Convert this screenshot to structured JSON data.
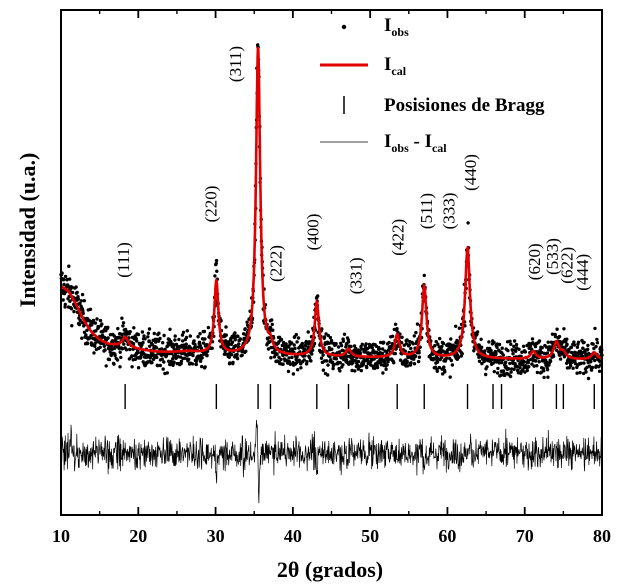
{
  "chart_data": {
    "type": "scatter",
    "title": "",
    "xlabel": "2θ (grados)",
    "ylabel": "Intensidad (u.a.)",
    "xlim": [
      10,
      80
    ],
    "ylim": [
      0,
      1000
    ],
    "xticks": [
      10,
      20,
      30,
      40,
      50,
      60,
      70,
      80
    ],
    "yticks_visible": false,
    "legend": {
      "placement": "top-right",
      "entries": [
        {
          "marker": "dot",
          "label": "I",
          "sub": "obs",
          "color": "#000000"
        },
        {
          "marker": "line",
          "label": "I",
          "sub": "cal",
          "color": "#e00000"
        },
        {
          "marker": "bar",
          "label": "Posisiones de Bragg",
          "color": "#000000"
        },
        {
          "marker": "thin-line",
          "label": "I",
          "sub": "obs",
          "label2": " - I",
          "sub2": "cal",
          "color": "#000000"
        }
      ]
    },
    "series": [
      {
        "name": "Iobs",
        "style": "points",
        "color": "#000000"
      },
      {
        "name": "Ical",
        "style": "line",
        "color": "#e00000"
      },
      {
        "name": "Posisiones de Bragg",
        "style": "ticks",
        "color": "#000000"
      },
      {
        "name": "Iobs - Ical",
        "style": "thin-line",
        "color": "#000000"
      }
    ],
    "background": [
      [
        10,
        245
      ],
      [
        11,
        230
      ],
      [
        12,
        190
      ],
      [
        13,
        145
      ],
      [
        14,
        112
      ],
      [
        15,
        92
      ],
      [
        16,
        80
      ],
      [
        18,
        70
      ],
      [
        22,
        58
      ],
      [
        26,
        52
      ],
      [
        30,
        48
      ],
      [
        40,
        44
      ],
      [
        50,
        41
      ],
      [
        60,
        38
      ],
      [
        70,
        36
      ],
      [
        80,
        35
      ]
    ],
    "peaks": [
      {
        "hkl": "(111)",
        "two_theta": 18.3,
        "intensity": 30,
        "width": 0.5
      },
      {
        "hkl": "(220)",
        "two_theta": 30.1,
        "intensity": 210,
        "width": 0.32
      },
      {
        "hkl": "(311)",
        "two_theta": 35.5,
        "intensity": 880,
        "width": 0.33
      },
      {
        "hkl": "(222)",
        "two_theta": 37.1,
        "intensity": 25,
        "width": 0.35
      },
      {
        "hkl": "(400)",
        "two_theta": 43.1,
        "intensity": 155,
        "width": 0.33
      },
      {
        "hkl": "(331)",
        "two_theta": 47.2,
        "intensity": 22,
        "width": 0.4
      },
      {
        "hkl": "(422)",
        "two_theta": 53.5,
        "intensity": 65,
        "width": 0.36
      },
      {
        "hkl": "(511)",
        "two_theta": 57.0,
        "intensity": 205,
        "width": 0.35
      },
      {
        "hkl": "(333)",
        "two_theta": 57.0,
        "intensity": 0,
        "width": 0.35
      },
      {
        "hkl": "(440)",
        "two_theta": 62.6,
        "intensity": 315,
        "width": 0.38
      },
      {
        "hkl": "(620)",
        "two_theta": 71.1,
        "intensity": 22,
        "width": 0.4
      },
      {
        "hkl": "(533)",
        "two_theta": 74.1,
        "intensity": 48,
        "width": 0.42
      },
      {
        "hkl": "(622)",
        "two_theta": 75.0,
        "intensity": 18,
        "width": 0.42
      },
      {
        "hkl": "(444)",
        "two_theta": 79.0,
        "intensity": 20,
        "width": 0.42
      }
    ],
    "bragg_positions": [
      18.3,
      30.1,
      35.5,
      37.1,
      43.1,
      47.2,
      53.5,
      57.0,
      62.6,
      65.9,
      67.0,
      71.1,
      74.1,
      75.0,
      79.0
    ],
    "difference_noise_amplitude": 18,
    "difference_spikes": [
      {
        "x": 30.1,
        "amp": -55
      },
      {
        "x": 35.3,
        "amp": 60
      },
      {
        "x": 35.6,
        "amp": -110
      },
      {
        "x": 43.1,
        "amp": -45
      },
      {
        "x": 57.0,
        "amp": -30
      }
    ],
    "peak_labels": [
      {
        "hkl": "(111)",
        "x": 18.3,
        "y": 320,
        "rotated": true
      },
      {
        "hkl": "(220)",
        "x": 29.6,
        "y": 480,
        "rotated": true
      },
      {
        "hkl": "(311)",
        "x": 32.8,
        "y": 880,
        "rotated": true
      },
      {
        "hkl": "(222)",
        "x": 38.0,
        "y": 310,
        "rotated": true
      },
      {
        "hkl": "(400)",
        "x": 42.8,
        "y": 400,
        "rotated": true
      },
      {
        "hkl": "(331)",
        "x": 48.4,
        "y": 275,
        "rotated": true
      },
      {
        "hkl": "(422)",
        "x": 53.8,
        "y": 385,
        "rotated": true
      },
      {
        "hkl": "(511)",
        "x": 57.5,
        "y": 460,
        "rotated": true
      },
      {
        "hkl": "(333)",
        "x": 60.4,
        "y": 460,
        "rotated": true
      },
      {
        "hkl": "(440)",
        "x": 63.2,
        "y": 570,
        "rotated": true
      },
      {
        "hkl": "(620)",
        "x": 71.5,
        "y": 315,
        "rotated": true
      },
      {
        "hkl": "(533)",
        "x": 73.8,
        "y": 330,
        "rotated": true
      },
      {
        "hkl": "(622)",
        "x": 75.7,
        "y": 305,
        "rotated": true
      },
      {
        "hkl": "(444)",
        "x": 77.7,
        "y": 285,
        "rotated": true
      }
    ]
  }
}
